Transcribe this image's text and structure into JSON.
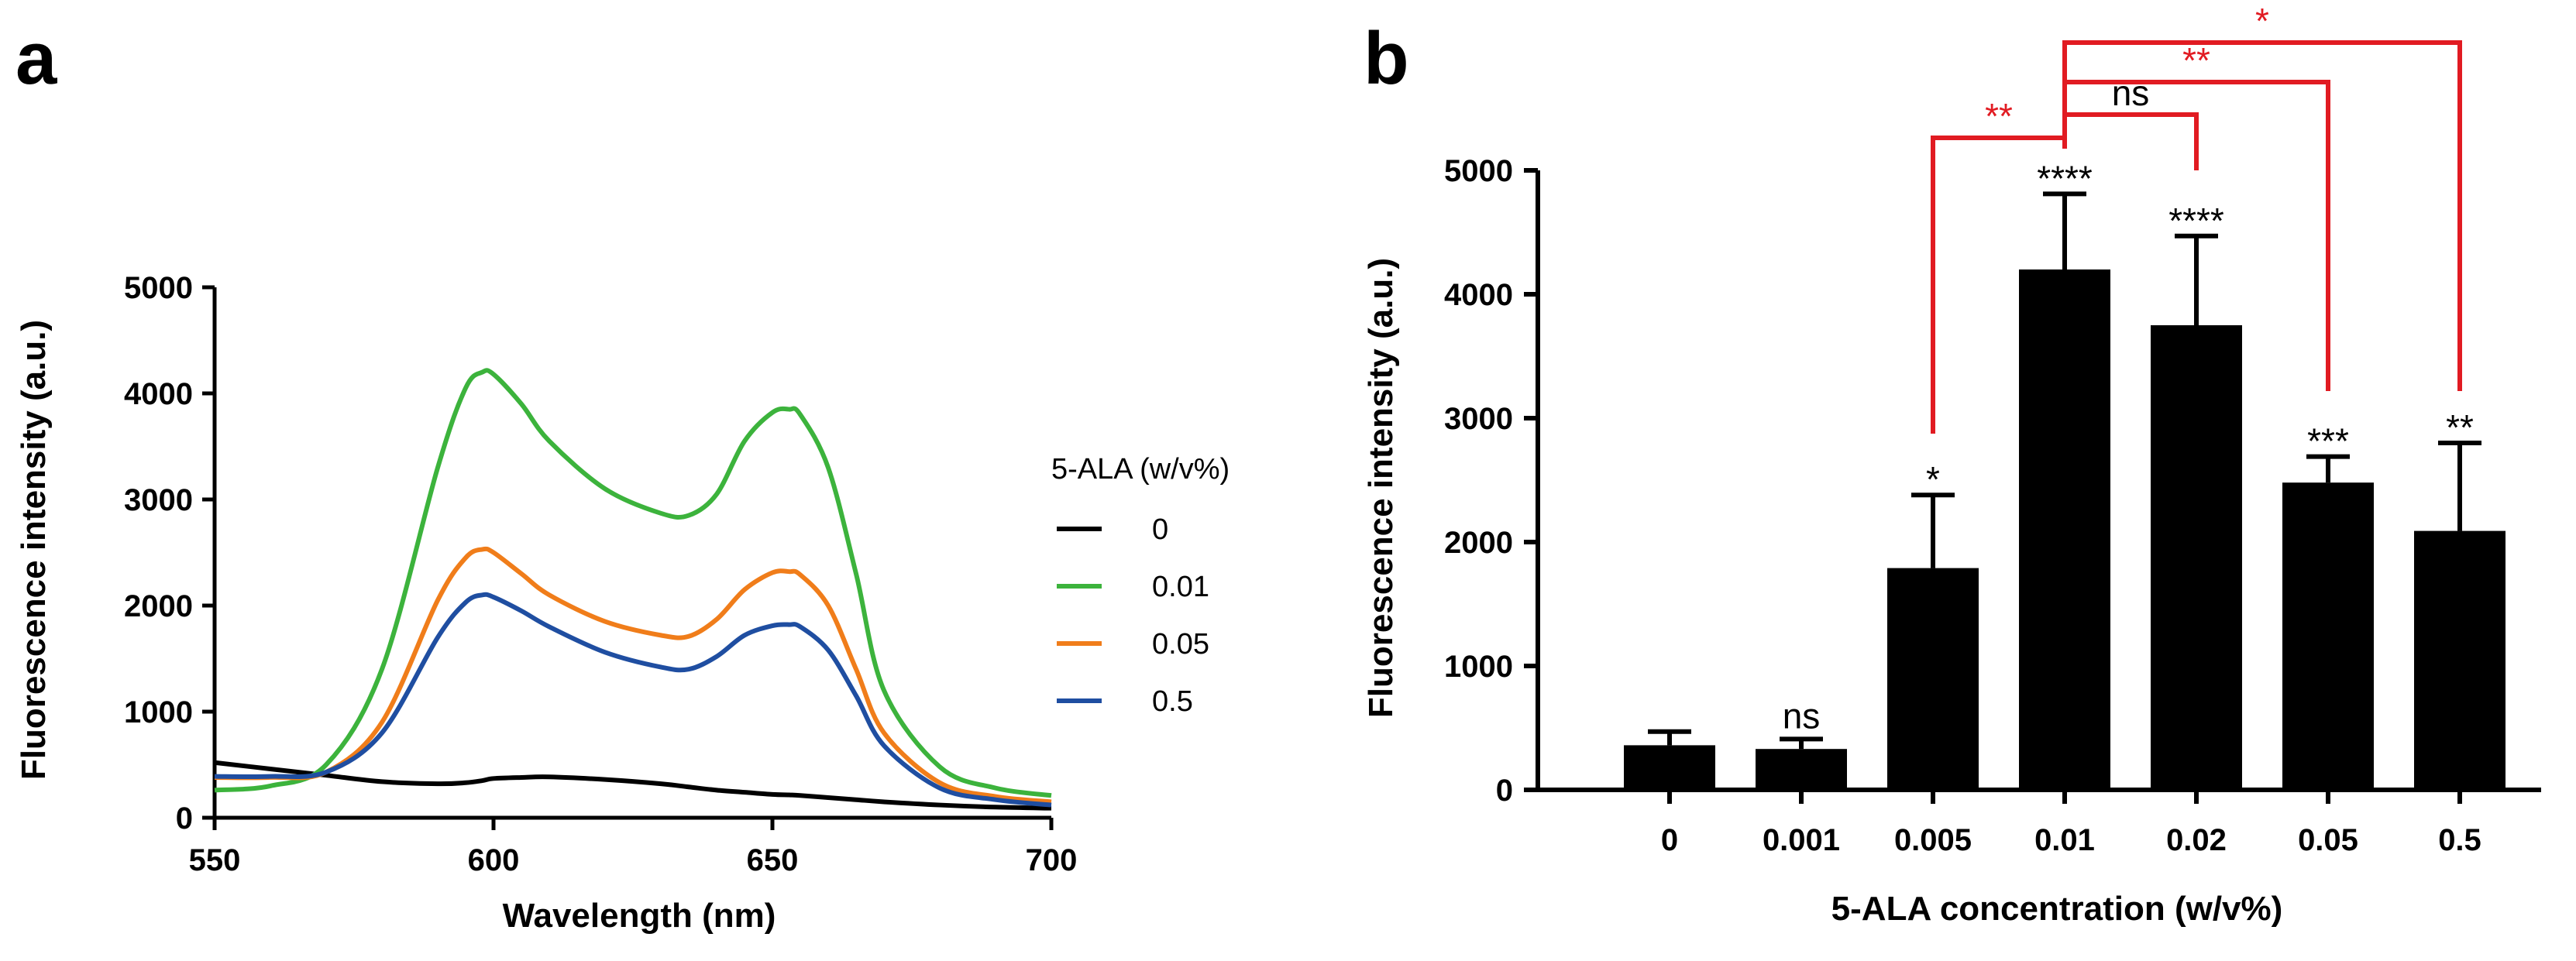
{
  "panels": {
    "a_label": "a",
    "b_label": "b"
  },
  "chart_data": [
    {
      "id": "a",
      "type": "line",
      "title": "",
      "xlabel": "Wavelength (nm)",
      "ylabel": "Fluorescence intensity (a.u.)",
      "xlim": [
        550,
        700
      ],
      "ylim": [
        0,
        5000
      ],
      "xticks": [
        "550",
        "600",
        "650",
        "700"
      ],
      "yticks": [
        "0",
        "1000",
        "2000",
        "3000",
        "4000",
        "5000"
      ],
      "legend_title": "5-ALA (w/v%)",
      "legend_position": "right",
      "x": [
        550,
        560,
        570,
        580,
        590,
        595,
        598,
        600,
        605,
        610,
        620,
        630,
        635,
        640,
        645,
        650,
        653,
        655,
        660,
        665,
        670,
        680,
        690,
        700
      ],
      "series": [
        {
          "name": "0",
          "color": "#000000",
          "values": [
            520,
            460,
            400,
            340,
            320,
            330,
            350,
            370,
            380,
            385,
            360,
            320,
            290,
            260,
            240,
            220,
            215,
            210,
            190,
            170,
            150,
            120,
            100,
            90
          ]
        },
        {
          "name": "0.01",
          "color": "#3cb33c",
          "values": [
            260,
            300,
            500,
            1400,
            3300,
            4050,
            4200,
            4180,
            3900,
            3550,
            3100,
            2870,
            2850,
            3050,
            3550,
            3820,
            3850,
            3800,
            3300,
            2300,
            1200,
            480,
            280,
            210
          ]
        },
        {
          "name": "0.05",
          "color": "#f07d1a",
          "values": [
            380,
            380,
            430,
            900,
            2050,
            2450,
            2530,
            2500,
            2300,
            2100,
            1850,
            1720,
            1710,
            1870,
            2150,
            2310,
            2320,
            2290,
            2000,
            1400,
            800,
            330,
            200,
            150
          ]
        },
        {
          "name": "0.5",
          "color": "#1f4ea1",
          "values": [
            390,
            390,
            430,
            800,
            1700,
            2030,
            2100,
            2080,
            1950,
            1800,
            1560,
            1420,
            1400,
            1520,
            1720,
            1810,
            1820,
            1800,
            1580,
            1150,
            680,
            280,
            170,
            120
          ]
        }
      ]
    },
    {
      "id": "b",
      "type": "bar",
      "title": "",
      "xlabel": "5-ALA concentration (w/v%)",
      "ylabel": "Fluorescence intensity (a.u.)",
      "ylim": [
        0,
        5000
      ],
      "yticks": [
        "0",
        "1000",
        "2000",
        "3000",
        "4000",
        "5000"
      ],
      "categories": [
        "0",
        "0.001",
        "0.005",
        "0.01",
        "0.02",
        "0.05",
        "0.5"
      ],
      "values": [
        360,
        330,
        1790,
        4200,
        3750,
        2480,
        2090
      ],
      "error_upper": [
        470,
        410,
        2380,
        4810,
        4470,
        2690,
        2800
      ],
      "significance_vs_control": [
        "",
        "ns",
        "*",
        "****",
        "****",
        "***",
        "**"
      ],
      "comparisons": [
        {
          "from": "0.005",
          "to": "0.01",
          "label": "**"
        },
        {
          "from": "0.01",
          "to": "0.02",
          "label": "ns"
        },
        {
          "from": "0.01",
          "to": "0.05",
          "label": "**"
        },
        {
          "from": "0.01",
          "to": "0.5",
          "label": "*"
        }
      ],
      "colors": {
        "bars": "#000000",
        "comparison": "#e11b22"
      }
    }
  ]
}
